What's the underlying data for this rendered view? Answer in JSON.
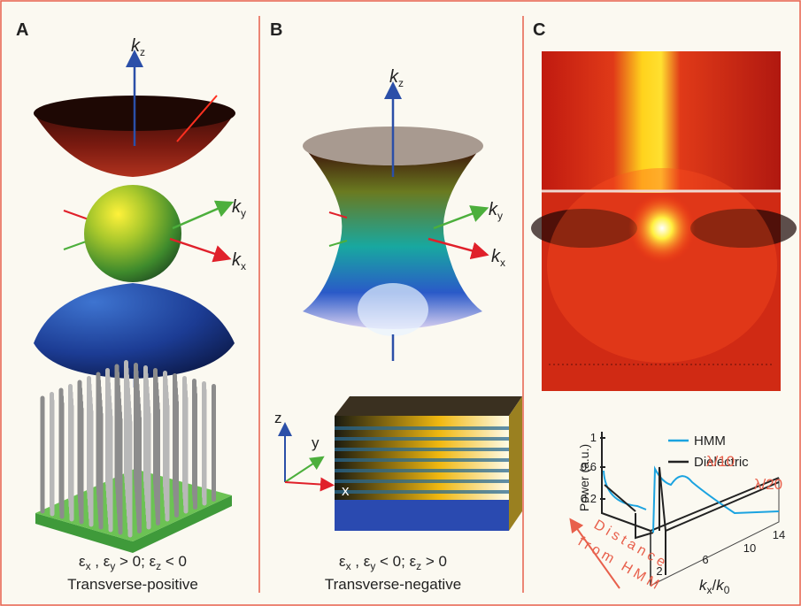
{
  "panel_a": {
    "label": "A",
    "axes": [
      {
        "symbol": "k",
        "subscript": "z"
      },
      {
        "symbol": "k",
        "subscript": "y"
      },
      {
        "symbol": "k",
        "subscript": "x"
      }
    ],
    "condition": [
      "ε",
      "x",
      " , ε",
      "y",
      " > 0; ε",
      "z",
      " < 0"
    ],
    "name": "Transverse-positive"
  },
  "panel_b": {
    "label": "B",
    "axes": [
      {
        "symbol": "k",
        "subscript": "z"
      },
      {
        "symbol": "k",
        "subscript": "y"
      },
      {
        "symbol": "k",
        "subscript": "x"
      }
    ],
    "coordinates": [
      "z",
      "y",
      "x"
    ],
    "condition": [
      "ε",
      "x",
      " , ε",
      "y",
      " < 0; ε",
      "z",
      " > 0"
    ],
    "name": "Transverse-negative"
  },
  "panel_c": {
    "label": "C",
    "plot": {
      "y_label": "Power (a.u.)",
      "yticks": [
        "1",
        "0.6",
        "0.2"
      ],
      "xticks": [
        "2",
        "6",
        "10",
        "14"
      ],
      "x_label": {
        "symbol": "k",
        "subscript": "x",
        "slash": "/",
        "symbol2": "k",
        "subscript2": "0"
      },
      "legend": [
        "HMM",
        "Dielectric"
      ],
      "annotations": [
        "λ/10",
        "λ/20"
      ],
      "depth_label": [
        "Distance",
        "from HMM"
      ]
    }
  }
}
